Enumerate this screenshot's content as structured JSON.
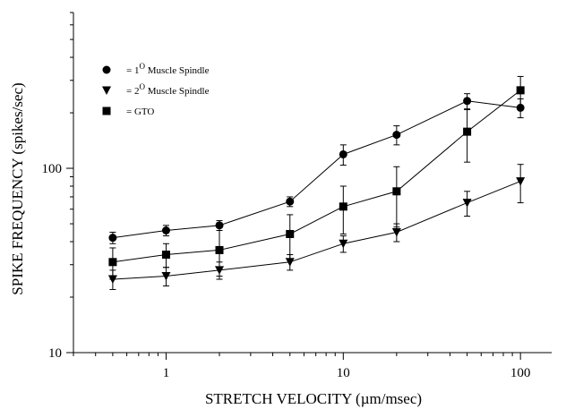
{
  "chart_data": {
    "type": "line",
    "xscale": "log",
    "yscale": "log",
    "xlabel": "STRETCH VELOCITY (µm/msec)",
    "ylabel": "SPIKE FREQUENCY (spikes/sec)",
    "xlim": [
      0.3,
      150
    ],
    "ylim": [
      10,
      700
    ],
    "xticks": [
      1,
      10,
      100
    ],
    "xtick_labels": [
      "1",
      "10",
      "100"
    ],
    "yticks": [
      10,
      100
    ],
    "ytick_labels": [
      "10",
      "100"
    ],
    "x": [
      0.5,
      1,
      2,
      5,
      10,
      20,
      50,
      100
    ],
    "grid": false,
    "legend_position": "top-left",
    "series": [
      {
        "name": "= 1° Muscle Spindle",
        "legend_prefix": "= 1",
        "legend_sup": "O",
        "legend_suffix": " Muscle Spindle",
        "marker": "circle",
        "values": [
          42,
          46,
          49,
          66,
          119,
          152,
          232,
          213
        ],
        "errors": [
          3,
          3,
          3,
          4,
          15,
          18,
          22,
          25
        ]
      },
      {
        "name": "= 2° Muscle Spindle",
        "legend_prefix": "= 2",
        "legend_sup": "O",
        "legend_suffix": " Muscle Spindle",
        "marker": "triangle-down",
        "values": [
          25,
          26,
          28,
          31,
          39,
          45,
          65,
          85
        ],
        "errors": [
          3,
          3,
          3,
          3,
          4,
          5,
          10,
          20
        ]
      },
      {
        "name": "= GTO",
        "legend_prefix": "= GTO",
        "legend_sup": "",
        "legend_suffix": "",
        "marker": "square",
        "values": [
          31,
          34,
          36,
          44,
          62,
          75,
          158,
          265
        ],
        "errors": [
          6,
          5,
          10,
          12,
          18,
          27,
          50,
          50
        ]
      }
    ]
  }
}
